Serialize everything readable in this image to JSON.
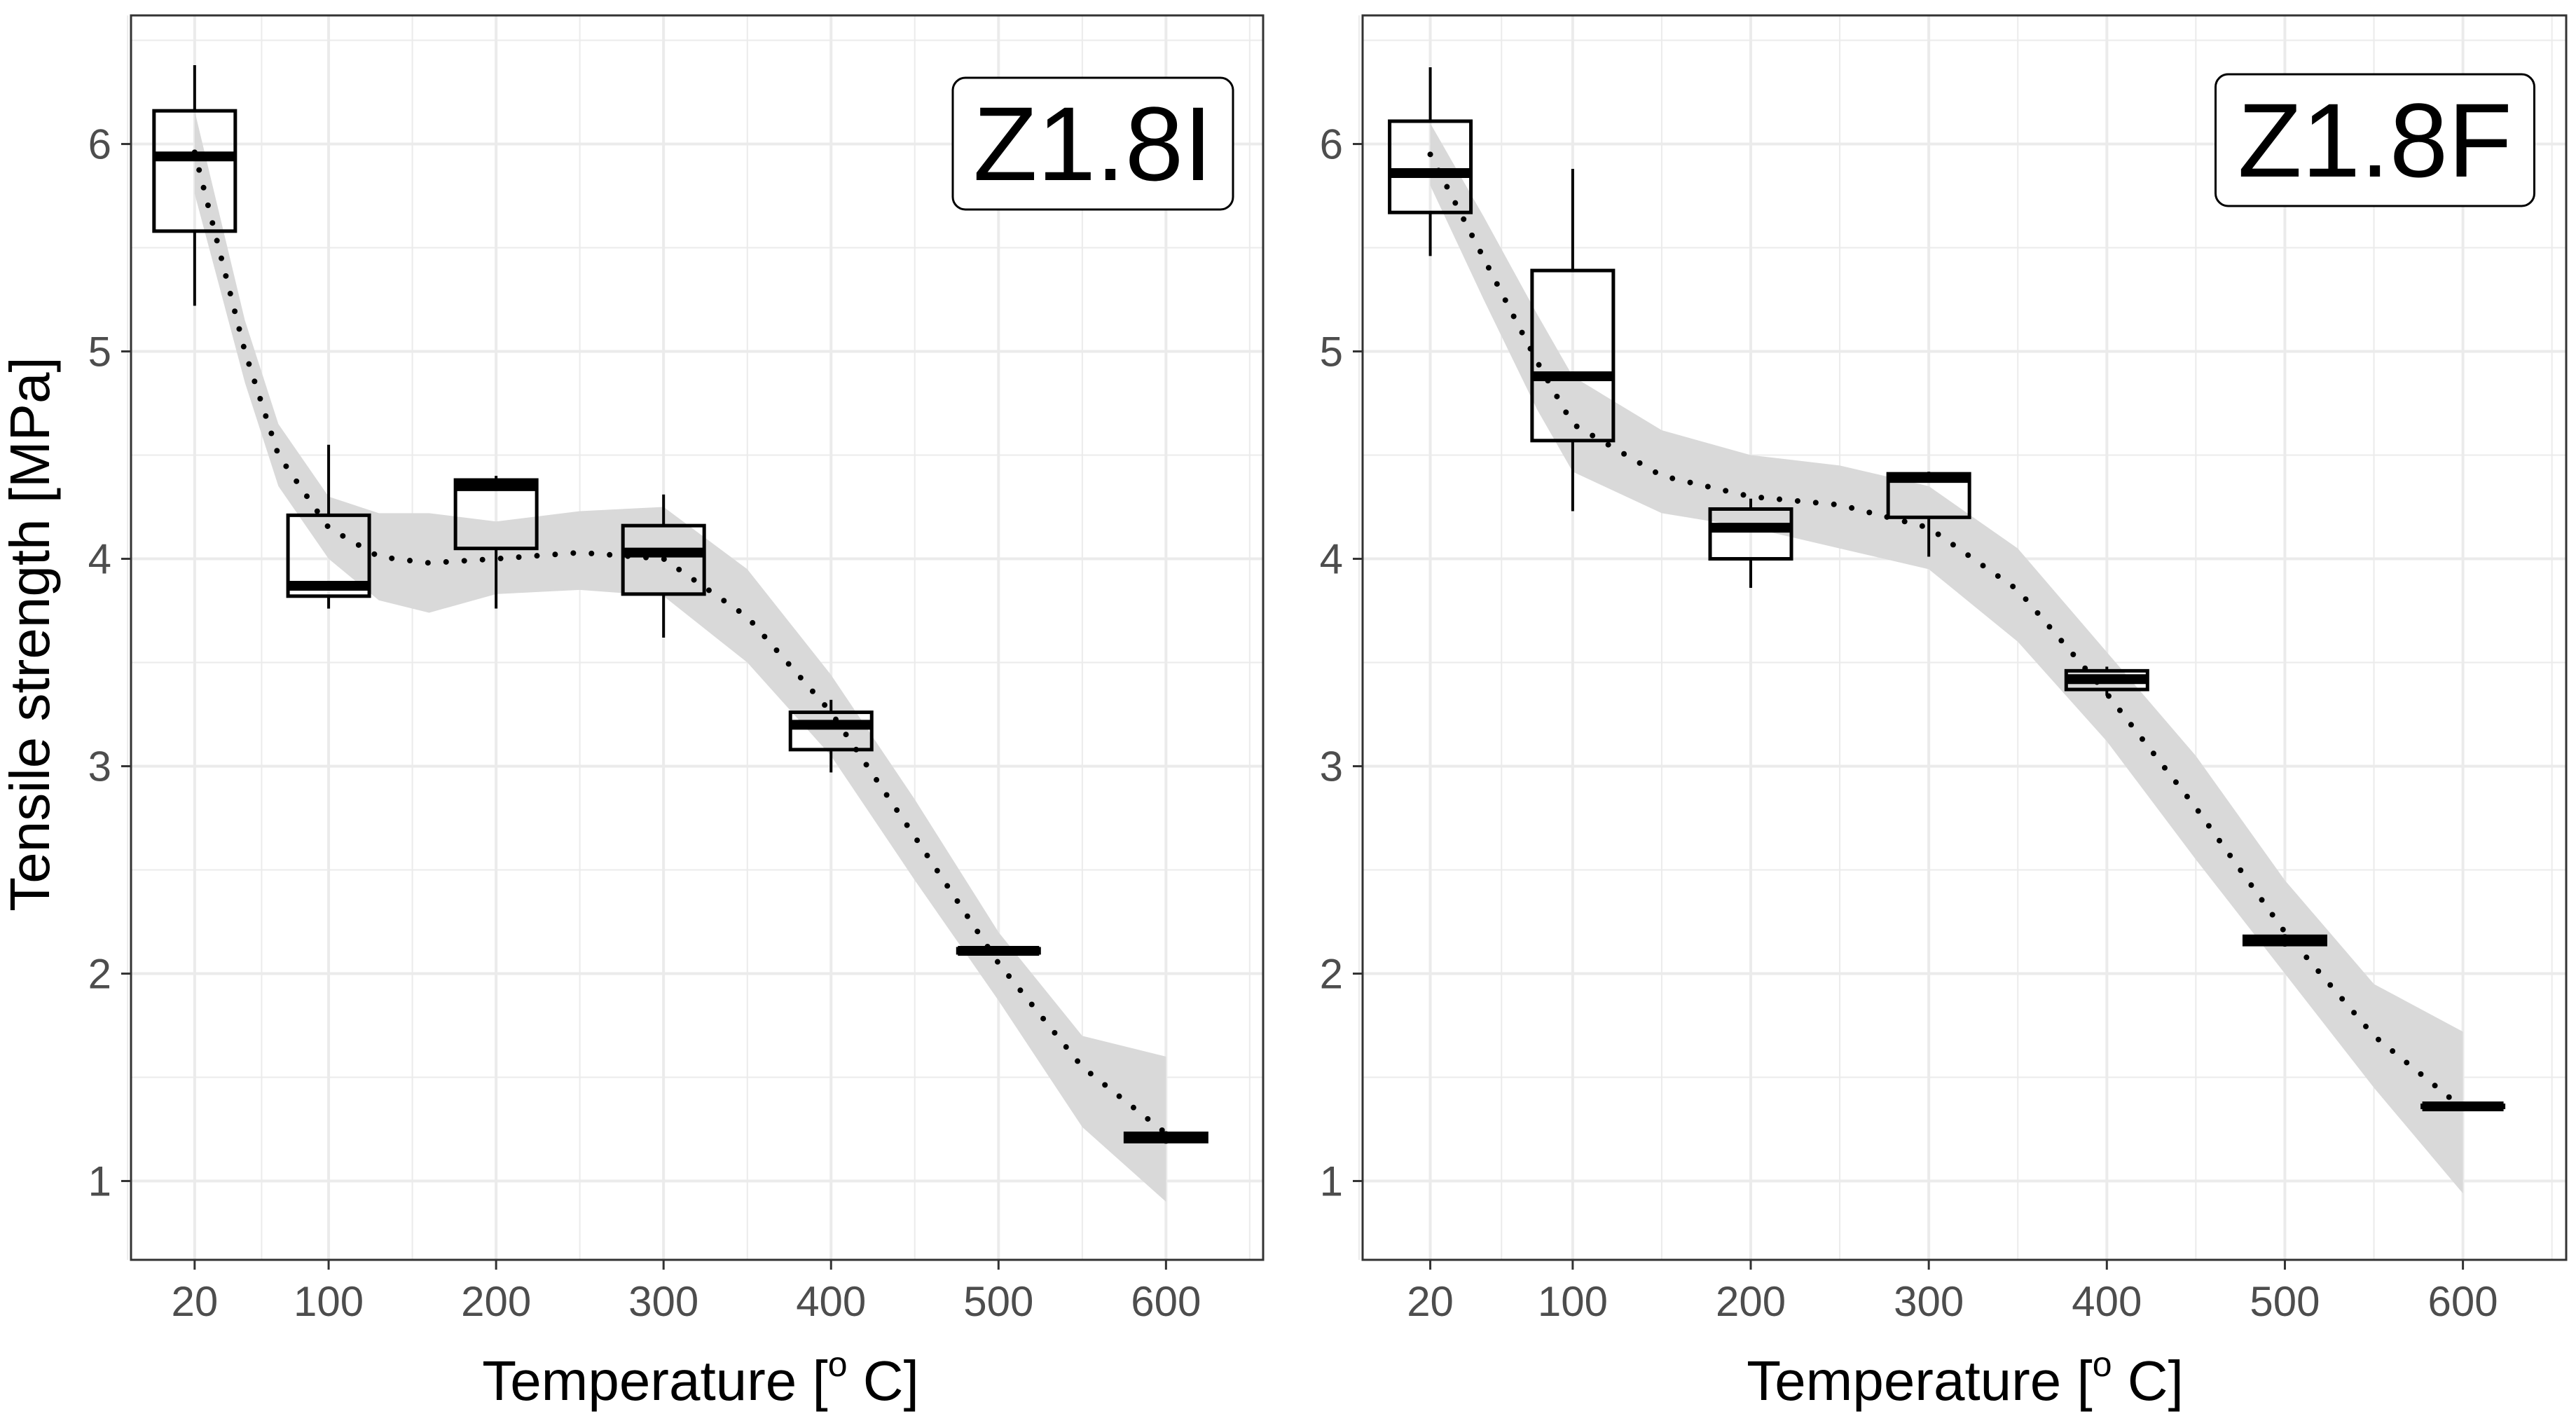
{
  "colors": {
    "grid": "#ebebeb",
    "band": "#d9d9d9",
    "box": "#000000",
    "tick_text": "#4d4d4d",
    "background": "#ffffff"
  },
  "chart_data": [
    {
      "type": "boxplot",
      "panel_label": "Z1.8I",
      "xlabel_main": "Temperature [",
      "xlabel_sup": "o",
      "xlabel_end": " C]",
      "ylabel": "Tensile strength [MPa]",
      "x_ticks": [
        20,
        100,
        200,
        300,
        400,
        500,
        600
      ],
      "x_tick_labels": [
        "20",
        "100",
        "200",
        "300",
        "400",
        "500",
        "600"
      ],
      "xlim": [
        -18,
        658
      ],
      "y_ticks": [
        1,
        2,
        3,
        4,
        5,
        6
      ],
      "y_tick_labels": [
        "1",
        "2",
        "3",
        "4",
        "5",
        "6"
      ],
      "ylim": [
        0.62,
        6.62
      ],
      "grid": true,
      "boxes": [
        {
          "x": 20,
          "min": 5.22,
          "q1": 5.58,
          "median": 5.94,
          "q3": 6.16,
          "max": 6.38
        },
        {
          "x": 100,
          "min": 3.76,
          "q1": 3.82,
          "median": 3.87,
          "q3": 4.21,
          "max": 4.55
        },
        {
          "x": 200,
          "min": 3.76,
          "q1": 4.05,
          "median": 4.35,
          "q3": 4.38,
          "max": 4.4
        },
        {
          "x": 300,
          "min": 3.62,
          "q1": 3.83,
          "median": 4.03,
          "q3": 4.16,
          "max": 4.31
        },
        {
          "x": 400,
          "min": 2.97,
          "q1": 3.08,
          "median": 3.2,
          "q3": 3.26,
          "max": 3.32
        },
        {
          "x": 500,
          "min": 2.09,
          "q1": 2.1,
          "median": 2.11,
          "q3": 2.12,
          "max": 2.13
        },
        {
          "x": 600,
          "min": 1.18,
          "q1": 1.19,
          "median": 1.21,
          "q3": 1.23,
          "max": 1.24
        }
      ],
      "smooth": {
        "x": [
          20,
          50,
          70,
          100,
          130,
          160,
          200,
          250,
          300,
          350,
          400,
          450,
          500,
          550,
          600
        ],
        "fit": [
          5.96,
          5.0,
          4.5,
          4.15,
          4.01,
          3.98,
          4.0,
          4.03,
          4.0,
          3.72,
          3.26,
          2.66,
          2.05,
          1.55,
          1.23
        ],
        "lower": [
          5.76,
          4.85,
          4.35,
          4.0,
          3.8,
          3.74,
          3.83,
          3.85,
          3.82,
          3.5,
          3.05,
          2.45,
          1.87,
          1.26,
          0.9
        ],
        "upper": [
          6.16,
          5.15,
          4.65,
          4.3,
          4.22,
          4.22,
          4.18,
          4.23,
          4.25,
          3.95,
          3.44,
          2.84,
          2.2,
          1.7,
          1.6
        ]
      }
    },
    {
      "type": "boxplot",
      "panel_label": "Z1.8F",
      "xlabel_main": "Temperature [",
      "xlabel_sup": "o",
      "xlabel_end": " C]",
      "ylabel": "",
      "x_ticks": [
        20,
        100,
        200,
        300,
        400,
        500,
        600
      ],
      "x_tick_labels": [
        "20",
        "100",
        "200",
        "300",
        "400",
        "500",
        "600"
      ],
      "xlim": [
        -18,
        658
      ],
      "y_ticks": [
        1,
        2,
        3,
        4,
        5,
        6
      ],
      "y_tick_labels": [
        "1",
        "2",
        "3",
        "4",
        "5",
        "6"
      ],
      "ylim": [
        0.62,
        6.62
      ],
      "grid": true,
      "boxes": [
        {
          "x": 20,
          "min": 5.46,
          "q1": 5.67,
          "median": 5.86,
          "q3": 6.11,
          "max": 6.37
        },
        {
          "x": 100,
          "min": 4.23,
          "q1": 4.57,
          "median": 4.88,
          "q3": 5.39,
          "max": 5.88
        },
        {
          "x": 200,
          "min": 3.86,
          "q1": 4.0,
          "median": 4.15,
          "q3": 4.24,
          "max": 4.29
        },
        {
          "x": 300,
          "min": 4.01,
          "q1": 4.2,
          "median": 4.39,
          "q3": 4.41,
          "max": 4.42
        },
        {
          "x": 400,
          "min": 3.34,
          "q1": 3.37,
          "median": 3.42,
          "q3": 3.46,
          "max": 3.48
        },
        {
          "x": 500,
          "min": 2.13,
          "q1": 2.14,
          "median": 2.16,
          "q3": 2.18,
          "max": 2.19
        },
        {
          "x": 600,
          "min": 1.35,
          "q1": 1.355,
          "median": 1.36,
          "q3": 1.365,
          "max": 1.37
        }
      ],
      "smooth": {
        "x": [
          20,
          50,
          80,
          100,
          150,
          200,
          250,
          300,
          350,
          400,
          450,
          500,
          550,
          600
        ],
        "fit": [
          5.95,
          5.45,
          4.95,
          4.65,
          4.4,
          4.3,
          4.26,
          4.15,
          3.85,
          3.35,
          2.8,
          2.2,
          1.7,
          1.35
        ],
        "lower": [
          5.8,
          5.25,
          4.72,
          4.42,
          4.22,
          4.15,
          4.05,
          3.95,
          3.6,
          3.12,
          2.55,
          2.0,
          1.45,
          0.94
        ],
        "upper": [
          6.1,
          5.65,
          5.18,
          4.88,
          4.62,
          4.5,
          4.45,
          4.35,
          4.05,
          3.55,
          3.05,
          2.45,
          1.95,
          1.72
        ]
      }
    }
  ]
}
